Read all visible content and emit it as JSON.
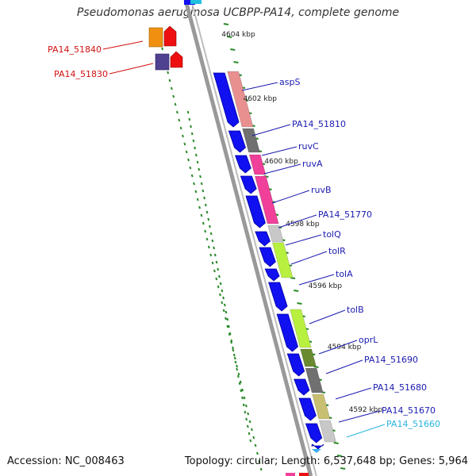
{
  "title": "Pseudomonas aeruginosa UCBPP-PA14, complete genome",
  "accession": "Accession: NC_008463",
  "topology": "Topology: circular; Length: 6,537,648 bp; Genes: 5,964",
  "ruler_labels": [
    {
      "text": "4604 kbp"
    },
    {
      "text": "4602 kbp"
    },
    {
      "text": "4600 kbp"
    },
    {
      "text": "4598 kbp"
    },
    {
      "text": "4596 kbp"
    },
    {
      "text": "4594 kbp"
    },
    {
      "text": "4592 kbp"
    }
  ],
  "genes_left": [
    {
      "text": "PA14_51840",
      "color": "#d01010"
    },
    {
      "text": "PA14_51830",
      "color": "#d01010"
    }
  ],
  "genes_right": [
    {
      "text": "aspS",
      "color": "#1a1ab0"
    },
    {
      "text": "PA14_51810",
      "color": "#1a1ab0"
    },
    {
      "text": "ruvC",
      "color": "#1a1ab0"
    },
    {
      "text": "ruvA",
      "color": "#1a1ab0"
    },
    {
      "text": "ruvB",
      "color": "#1a1ab0"
    },
    {
      "text": "PA14_51770",
      "color": "#1a1ab0"
    },
    {
      "text": "tolQ",
      "color": "#1a1ab0"
    },
    {
      "text": "tolR",
      "color": "#1a1ab0"
    },
    {
      "text": "tolA",
      "color": "#1a1ab0"
    },
    {
      "text": "tolB",
      "color": "#1a1ab0"
    },
    {
      "text": "oprL",
      "color": "#1a1ab0"
    },
    {
      "text": "PA14_51690",
      "color": "#1a1ab0"
    },
    {
      "text": "PA14_51680",
      "color": "#1a1ab0"
    },
    {
      "text": "PA14_51670",
      "color": "#1a1ab0"
    },
    {
      "text": "PA14_51660",
      "color": "#2ab4e0"
    }
  ],
  "colors": {
    "backbone": "#999999",
    "cds_blue": "#1010f0",
    "cog_salmon": "#e89090",
    "cog_gray": "#707070",
    "cog_pink": "#f0409a",
    "cog_lightgray": "#c8c8c8",
    "cog_lime": "#b8f040",
    "cog_olive": "#6a8a30",
    "cog_khaki": "#c8c070",
    "gc_skew": "#2a8a2a",
    "rev_red": "#ee1010",
    "rev_orange": "#f09010",
    "rev_purple": "#504090"
  }
}
